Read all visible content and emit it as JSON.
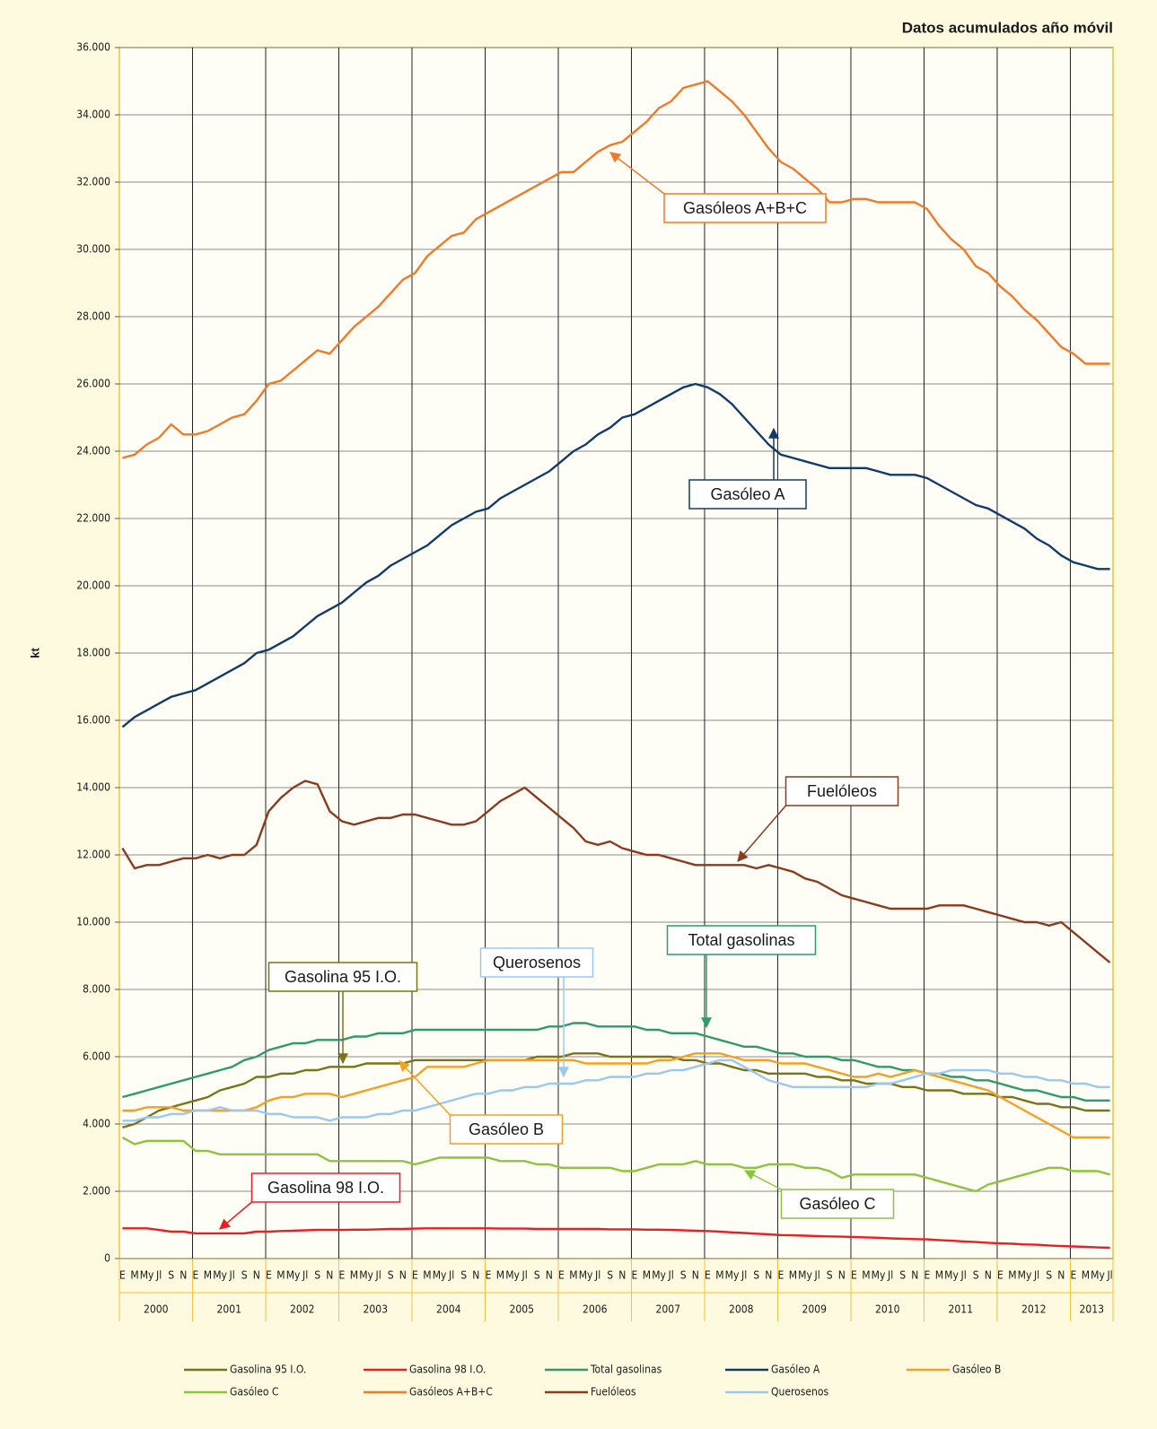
{
  "chart_data": {
    "type": "line",
    "title": "Datos acumulados año móvil",
    "ylabel": "kt",
    "categories": [
      "E",
      "M",
      "My",
      "Jl",
      "S",
      "N",
      "E",
      "M",
      "My",
      "Jl",
      "S",
      "N",
      "E",
      "M",
      "My",
      "Jl",
      "S",
      "N",
      "E",
      "M",
      "My",
      "Jl",
      "S",
      "N",
      "E",
      "M",
      "My",
      "Jl",
      "S",
      "N",
      "E",
      "M",
      "My",
      "Jl",
      "S",
      "N",
      "E",
      "M",
      "My",
      "Jl",
      "S",
      "N",
      "E",
      "M",
      "My",
      "Jl",
      "S",
      "N",
      "E",
      "M",
      "My",
      "Jl",
      "S",
      "N",
      "E",
      "M",
      "My",
      "Jl",
      "S",
      "N",
      "E",
      "M",
      "My",
      "Jl",
      "S",
      "N",
      "E",
      "M",
      "My",
      "Jl",
      "S",
      "N",
      "E",
      "M",
      "My",
      "Jl",
      "S",
      "N",
      "E",
      "M",
      "My",
      "Jl"
    ],
    "years": [
      "2000",
      "2001",
      "2002",
      "2003",
      "2004",
      "2005",
      "2006",
      "2007",
      "2008",
      "2009",
      "2010",
      "2011",
      "2012",
      "2013"
    ],
    "ylim": [
      0,
      36000
    ],
    "yticks": [
      0,
      {
        "value": 2000,
        "label": "2.000"
      },
      {
        "value": 4000,
        "label": "4.000"
      },
      {
        "value": 6000,
        "label": "6.000"
      },
      {
        "value": 8000,
        "label": "8.000"
      },
      {
        "value": 10000,
        "label": "10.000"
      },
      {
        "value": 12000,
        "label": "12.000"
      },
      {
        "value": 14000,
        "label": "14.000"
      },
      {
        "value": 16000,
        "label": "16.000"
      },
      {
        "value": 18000,
        "label": "18.000"
      },
      {
        "value": 20000,
        "label": "20.000"
      },
      {
        "value": 22000,
        "label": "22.000"
      },
      {
        "value": 24000,
        "label": "24.000"
      },
      {
        "value": 26000,
        "label": "26.000"
      },
      {
        "value": 28000,
        "label": "28.000"
      },
      {
        "value": 30000,
        "label": "30.000"
      },
      {
        "value": 32000,
        "label": "32.000"
      },
      {
        "value": 34000,
        "label": "34.000"
      },
      {
        "value": 36000,
        "label": "36.000"
      }
    ],
    "grid": true,
    "legend": "bottom",
    "series": [
      {
        "name": "Gasolina 95 I.O.",
        "color": "#7a7418",
        "values": [
          3900,
          4000,
          4200,
          4400,
          4500,
          4600,
          4700,
          4800,
          5000,
          5100,
          5200,
          5400,
          5400,
          5500,
          5500,
          5600,
          5600,
          5700,
          5700,
          5700,
          5800,
          5800,
          5800,
          5800,
          5900,
          5900,
          5900,
          5900,
          5900,
          5900,
          5900,
          5900,
          5900,
          5900,
          6000,
          6000,
          6000,
          6100,
          6100,
          6100,
          6000,
          6000,
          6000,
          6000,
          6000,
          6000,
          5900,
          5900,
          5800,
          5800,
          5700,
          5600,
          5600,
          5500,
          5500,
          5500,
          5500,
          5400,
          5400,
          5300,
          5300,
          5200,
          5200,
          5200,
          5100,
          5100,
          5000,
          5000,
          5000,
          4900,
          4900,
          4900,
          4800,
          4800,
          4700,
          4600,
          4600,
          4500,
          4500,
          4400,
          4400,
          4400
        ]
      },
      {
        "name": "Gasolina 98 I.O.",
        "color": "#e82020",
        "values": [
          900,
          900,
          900,
          850,
          800,
          800,
          750,
          750,
          750,
          750,
          750,
          800,
          800,
          820,
          830,
          840,
          850,
          850,
          850,
          860,
          860,
          870,
          880,
          880,
          890,
          900,
          900,
          900,
          900,
          900,
          900,
          890,
          890,
          890,
          880,
          880,
          880,
          880,
          880,
          880,
          870,
          870,
          870,
          860,
          860,
          850,
          840,
          830,
          820,
          800,
          780,
          760,
          740,
          720,
          700,
          690,
          680,
          670,
          660,
          650,
          640,
          630,
          620,
          600,
          590,
          580,
          570,
          550,
          530,
          510,
          490,
          470,
          450,
          440,
          420,
          410,
          390,
          370,
          360,
          350,
          330,
          320
        ]
      },
      {
        "name": "Total gasolinas",
        "color": "#2f9a6a",
        "values": [
          4800,
          4900,
          5000,
          5100,
          5200,
          5300,
          5400,
          5500,
          5600,
          5700,
          5900,
          6000,
          6200,
          6300,
          6400,
          6400,
          6500,
          6500,
          6500,
          6600,
          6600,
          6700,
          6700,
          6700,
          6800,
          6800,
          6800,
          6800,
          6800,
          6800,
          6800,
          6800,
          6800,
          6800,
          6800,
          6900,
          6900,
          7000,
          7000,
          6900,
          6900,
          6900,
          6900,
          6800,
          6800,
          6700,
          6700,
          6700,
          6600,
          6500,
          6400,
          6300,
          6300,
          6200,
          6100,
          6100,
          6000,
          6000,
          6000,
          5900,
          5900,
          5800,
          5700,
          5700,
          5600,
          5600,
          5500,
          5500,
          5400,
          5400,
          5300,
          5300,
          5200,
          5100,
          5000,
          5000,
          4900,
          4800,
          4800,
          4700,
          4700,
          4700
        ]
      },
      {
        "name": "Gasóleo A",
        "color": "#123a6b",
        "values": [
          15800,
          16100,
          16300,
          16500,
          16700,
          16800,
          16900,
          17100,
          17300,
          17500,
          17700,
          18000,
          18100,
          18300,
          18500,
          18800,
          19100,
          19300,
          19500,
          19800,
          20100,
          20300,
          20600,
          20800,
          21000,
          21200,
          21500,
          21800,
          22000,
          22200,
          22300,
          22600,
          22800,
          23000,
          23200,
          23400,
          23700,
          24000,
          24200,
          24500,
          24700,
          25000,
          25100,
          25300,
          25500,
          25700,
          25900,
          26000,
          25900,
          25700,
          25400,
          25000,
          24600,
          24200,
          23900,
          23800,
          23700,
          23600,
          23500,
          23500,
          23500,
          23500,
          23400,
          23300,
          23300,
          23300,
          23200,
          23000,
          22800,
          22600,
          22400,
          22300,
          22100,
          21900,
          21700,
          21400,
          21200,
          20900,
          20700,
          20600,
          20500,
          20500
        ]
      },
      {
        "name": "Gasóleo B",
        "color": "#f5a020",
        "values": [
          4400,
          4400,
          4500,
          4500,
          4500,
          4400,
          4400,
          4400,
          4400,
          4400,
          4400,
          4500,
          4700,
          4800,
          4800,
          4900,
          4900,
          4900,
          4800,
          4900,
          5000,
          5100,
          5200,
          5300,
          5400,
          5700,
          5700,
          5700,
          5700,
          5800,
          5900,
          5900,
          5900,
          5900,
          5900,
          5900,
          5900,
          5900,
          5800,
          5800,
          5800,
          5800,
          5800,
          5800,
          5900,
          5900,
          6000,
          6100,
          6100,
          6100,
          6000,
          5900,
          5900,
          5900,
          5800,
          5800,
          5800,
          5700,
          5600,
          5500,
          5400,
          5400,
          5500,
          5400,
          5500,
          5600,
          5500,
          5400,
          5300,
          5200,
          5100,
          5000,
          4800,
          4600,
          4400,
          4200,
          4000,
          3800,
          3600,
          3600,
          3600,
          3600
        ]
      },
      {
        "name": "Gasóleo C",
        "color": "#8cc43c",
        "values": [
          3600,
          3400,
          3500,
          3500,
          3500,
          3500,
          3200,
          3200,
          3100,
          3100,
          3100,
          3100,
          3100,
          3100,
          3100,
          3100,
          3100,
          2900,
          2900,
          2900,
          2900,
          2900,
          2900,
          2900,
          2800,
          2900,
          3000,
          3000,
          3000,
          3000,
          3000,
          2900,
          2900,
          2900,
          2800,
          2800,
          2700,
          2700,
          2700,
          2700,
          2700,
          2600,
          2600,
          2700,
          2800,
          2800,
          2800,
          2900,
          2800,
          2800,
          2800,
          2700,
          2700,
          2800,
          2800,
          2800,
          2700,
          2700,
          2600,
          2400,
          2500,
          2500,
          2500,
          2500,
          2500,
          2500,
          2400,
          2300,
          2200,
          2100,
          2000,
          2200,
          2300,
          2400,
          2500,
          2600,
          2700,
          2700,
          2600,
          2600,
          2600,
          2500
        ]
      },
      {
        "name": "Gasóleos A+B+C",
        "color": "#f07a28",
        "values": [
          23800,
          23900,
          24200,
          24400,
          24800,
          24500,
          24500,
          24600,
          24800,
          25000,
          25100,
          25500,
          26000,
          26100,
          26400,
          26700,
          27000,
          26900,
          27300,
          27700,
          28000,
          28300,
          28700,
          29100,
          29300,
          29800,
          30100,
          30400,
          30500,
          30900,
          31100,
          31300,
          31500,
          31700,
          31900,
          32100,
          32300,
          32300,
          32600,
          32900,
          33100,
          33200,
          33500,
          33800,
          34200,
          34400,
          34800,
          34900,
          35000,
          34700,
          34400,
          34000,
          33500,
          33000,
          32600,
          32400,
          32100,
          31800,
          31400,
          31400,
          31500,
          31500,
          31400,
          31400,
          31400,
          31400,
          31200,
          30700,
          30300,
          30000,
          29500,
          29300,
          28900,
          28600,
          28200,
          27900,
          27500,
          27100,
          26900,
          26600,
          26600,
          26600
        ]
      },
      {
        "name": "Fuelóleos",
        "color": "#8b3a1e",
        "values": [
          12200,
          11600,
          11700,
          11700,
          11800,
          11900,
          11900,
          12000,
          11900,
          12000,
          12000,
          12300,
          13300,
          13700,
          14000,
          14200,
          14100,
          13300,
          13000,
          12900,
          13000,
          13100,
          13100,
          13200,
          13200,
          13100,
          13000,
          12900,
          12900,
          13000,
          13300,
          13600,
          13800,
          14000,
          13700,
          13400,
          13100,
          12800,
          12400,
          12300,
          12400,
          12200,
          12100,
          12000,
          12000,
          11900,
          11800,
          11700,
          11700,
          11700,
          11700,
          11700,
          11600,
          11700,
          11600,
          11500,
          11300,
          11200,
          11000,
          10800,
          10700,
          10600,
          10500,
          10400,
          10400,
          10400,
          10400,
          10500,
          10500,
          10500,
          10400,
          10300,
          10200,
          10100,
          10000,
          10000,
          9900,
          10000,
          9700,
          9400,
          9100,
          8800
        ]
      },
      {
        "name": "Querosenos",
        "color": "#9cc8ec",
        "values": [
          4100,
          4100,
          4200,
          4200,
          4300,
          4300,
          4400,
          4400,
          4500,
          4400,
          4400,
          4400,
          4300,
          4300,
          4200,
          4200,
          4200,
          4100,
          4200,
          4200,
          4200,
          4300,
          4300,
          4400,
          4400,
          4500,
          4600,
          4700,
          4800,
          4900,
          4900,
          5000,
          5000,
          5100,
          5100,
          5200,
          5200,
          5200,
          5300,
          5300,
          5400,
          5400,
          5400,
          5500,
          5500,
          5600,
          5600,
          5700,
          5800,
          5900,
          5900,
          5700,
          5500,
          5300,
          5200,
          5100,
          5100,
          5100,
          5100,
          5100,
          5100,
          5100,
          5200,
          5200,
          5300,
          5400,
          5500,
          5500,
          5600,
          5600,
          5600,
          5600,
          5500,
          5500,
          5400,
          5400,
          5300,
          5300,
          5200,
          5200,
          5100,
          5100
        ]
      }
    ],
    "annotations": [
      "Gasóleos A+B+C",
      "Gasóleo A",
      "Fuelóleos",
      "Total gasolinas",
      "Gasolina 95 I.O.",
      "Querosenos",
      "Gasóleo B",
      "Gasolina 98 I.O.",
      "Gasóleo C"
    ]
  }
}
